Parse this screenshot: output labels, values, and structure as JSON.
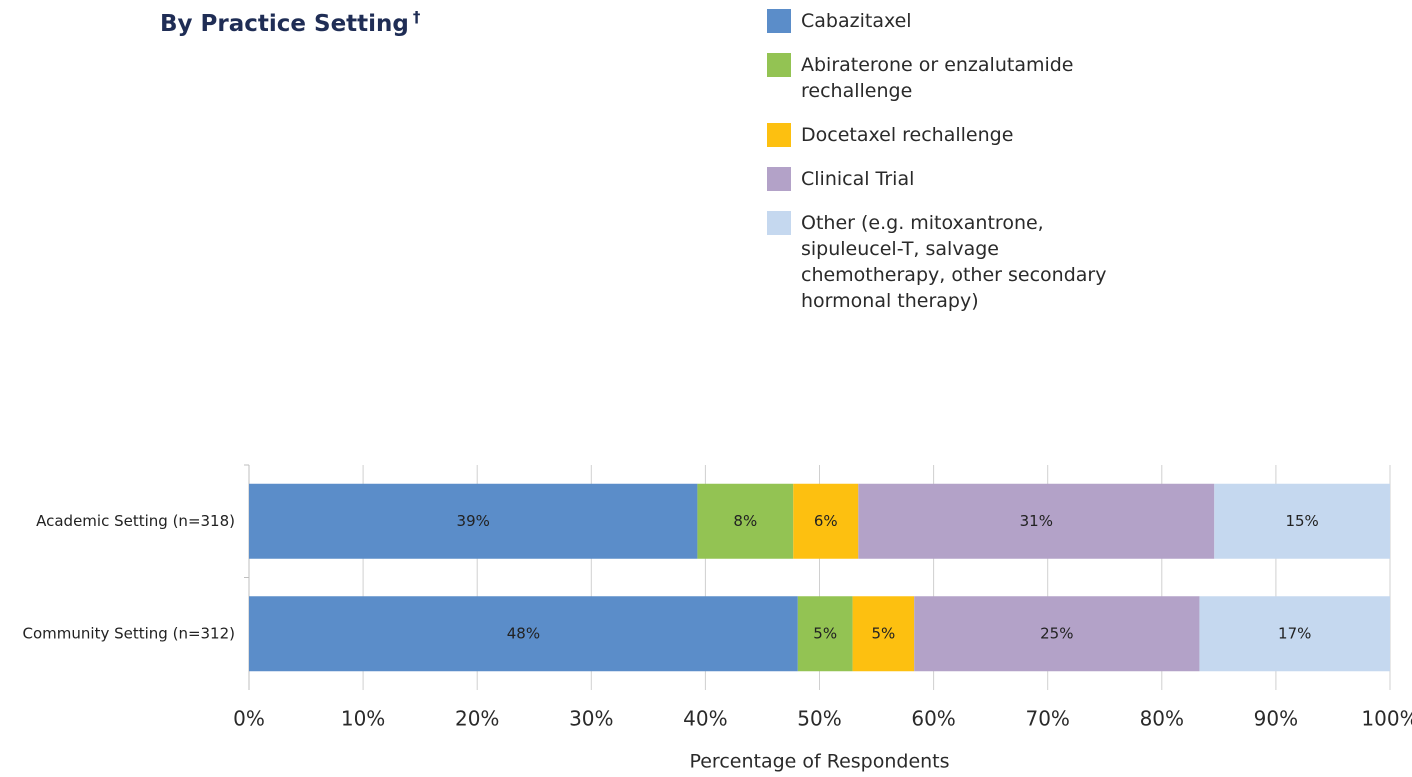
{
  "chart_data": {
    "type": "stacked-barh",
    "title": "By Practice Setting",
    "title_note": "†",
    "categories": [
      "Academic Setting (n=318)",
      "Community Setting (n=312)"
    ],
    "series": [
      {
        "name": "Cabazitaxel",
        "color": "#5b8dc9",
        "values": [
          39.3,
          48.1
        ],
        "value_labels": [
          "39%",
          "48%"
        ]
      },
      {
        "name": "Abiraterone or enzalutamide rechallenge",
        "color": "#93c353",
        "values": [
          8.4,
          4.8
        ],
        "value_labels": [
          "8%",
          "5%"
        ]
      },
      {
        "name": "Docetaxel rechallenge",
        "color": "#fdc010",
        "values": [
          5.7,
          5.4
        ],
        "value_labels": [
          "6%",
          "5%"
        ]
      },
      {
        "name": "Clinical Trial",
        "color": "#b3a2c8",
        "values": [
          31.2,
          25.0
        ],
        "value_labels": [
          "31%",
          "25%"
        ]
      },
      {
        "name": "Other (e.g. mitoxantrone, sipuleucel-T, salvage chemotherapy, other secondary hormonal therapy)",
        "color": "#c5d8ef",
        "values": [
          15.4,
          16.7
        ],
        "value_labels": [
          "15%",
          "17%"
        ]
      }
    ],
    "xlim": [
      0,
      100
    ],
    "xticks": [
      {
        "value": 0,
        "label": "0%"
      },
      {
        "value": 10,
        "label": "10%"
      },
      {
        "value": 20,
        "label": "20%"
      },
      {
        "value": 30,
        "label": "30%"
      },
      {
        "value": 40,
        "label": "40%"
      },
      {
        "value": 50,
        "label": "50%"
      },
      {
        "value": 60,
        "label": "60%"
      },
      {
        "value": 70,
        "label": "70%"
      },
      {
        "value": 80,
        "label": "80%"
      },
      {
        "value": 90,
        "label": "90%"
      },
      {
        "value": 100,
        "label": "100%"
      }
    ],
    "xlabel": "Percentage of Respondents",
    "grid": true
  }
}
